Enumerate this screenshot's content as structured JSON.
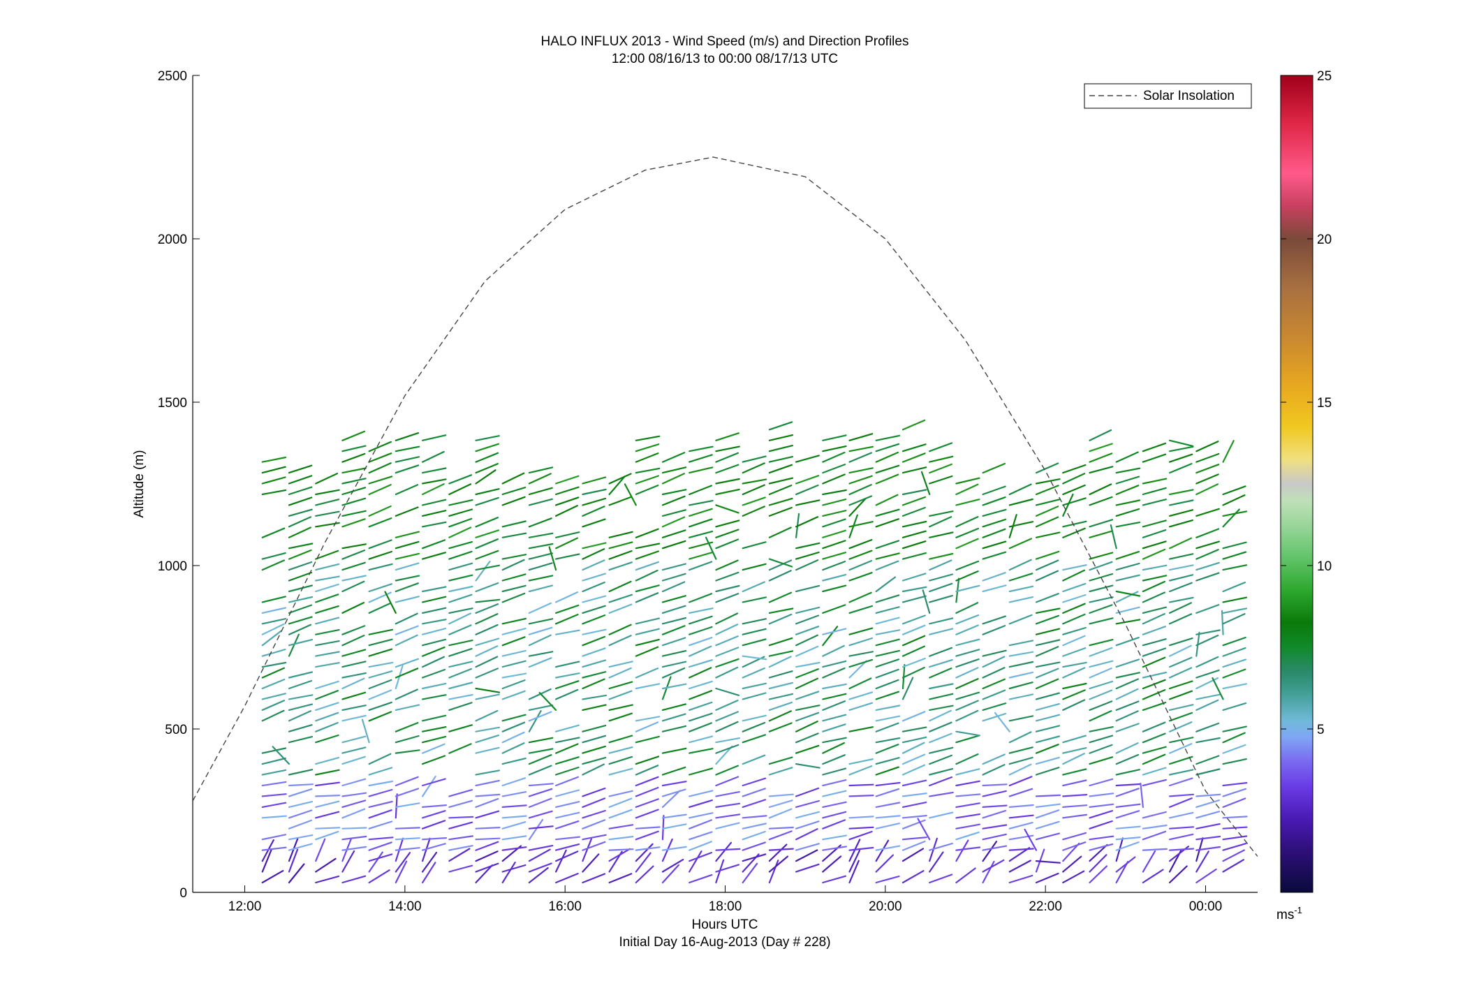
{
  "title": "HALO INFLUX 2013 - Wind Speed (m/s) and Direction Profiles",
  "subtitle": "12:00 08/16/13 to 00:00 08/17/13  UTC",
  "xlabel": "Hours UTC",
  "xlabel2": "Initial Day 16-Aug-2013 (Day # 228)",
  "ylabel": "Altitude (m)",
  "legend_label": "Solar Insolation",
  "colorbar_unit": "ms",
  "colorbar_unit_exp": "-1",
  "chart_data": {
    "type": "wind-barb",
    "x_ticks": [
      "12:00",
      "14:00",
      "16:00",
      "18:00",
      "20:00",
      "22:00",
      "00:00"
    ],
    "x_tick_hours": [
      12,
      14,
      16,
      18,
      20,
      22,
      24
    ],
    "xlim": [
      11.35,
      24.65
    ],
    "y_ticks": [
      "0",
      "500",
      "1000",
      "1500",
      "2000",
      "2500"
    ],
    "y_tick_values": [
      0,
      500,
      1000,
      1500,
      2000,
      2500
    ],
    "ylim": [
      0,
      2500
    ],
    "colorbar": {
      "ticks": [
        "5",
        "10",
        "15",
        "20",
        "25"
      ],
      "tick_values": [
        5,
        10,
        15,
        20,
        25
      ],
      "range": [
        0,
        25
      ],
      "colors": [
        "#0a0a3c",
        "#2d0f78",
        "#4a1ab4",
        "#6a3ce6",
        "#7a6af0",
        "#7fa6f5",
        "#6fbad8",
        "#3a9a8a",
        "#2a8a6a",
        "#118a2a",
        "#0a7a0a",
        "#2ea82e",
        "#62c46a",
        "#9ad69a",
        "#c0e0b8",
        "#c8c8c8",
        "#f0e080",
        "#f0c820",
        "#e8a820",
        "#c88830",
        "#a87040",
        "#7a4a3a",
        "#c84060",
        "#ff5a8a",
        "#e02848",
        "#a0001a"
      ],
      "stops": [
        0,
        0.05,
        0.09,
        0.13,
        0.16,
        0.19,
        0.21,
        0.25,
        0.27,
        0.3,
        0.33,
        0.37,
        0.41,
        0.45,
        0.48,
        0.5,
        0.53,
        0.57,
        0.62,
        0.68,
        0.74,
        0.8,
        0.84,
        0.88,
        0.94,
        1
      ]
    },
    "solar_insolation": {
      "name": "Solar Insolation",
      "style": "dashed",
      "x": [
        11.35,
        12.0,
        13.0,
        14.0,
        15.0,
        16.0,
        17.0,
        17.85,
        19.0,
        20.0,
        21.0,
        22.0,
        23.0,
        24.0,
        24.65
      ],
      "y": [
        280,
        570,
        1070,
        1520,
        1870,
        2090,
        2210,
        2250,
        2190,
        2000,
        1690,
        1290,
        820,
        310,
        110
      ]
    },
    "profiles": {
      "start_hour": 12.22,
      "step_hour": 0.3333,
      "count": 37,
      "altitude_step_m": 33,
      "max_top_m": 1380,
      "gap_altitudes_m": [
        [
          320,
          560
        ],
        [
          760,
          980
        ],
        [
          1050,
          1200
        ]
      ]
    },
    "wind_regimes": [
      {
        "altitude_m": [
          0,
          100
        ],
        "speed_ms": [
          2,
          3.5
        ],
        "direction": "westerly, veering with height"
      },
      {
        "altitude_m": [
          100,
          350
        ],
        "speed_ms": [
          3,
          5
        ],
        "direction": "westerly to southwesterly"
      },
      {
        "altitude_m": [
          350,
          1000
        ],
        "speed_ms": [
          5,
          8
        ],
        "direction": "southwesterly"
      },
      {
        "altitude_m": [
          1000,
          1450
        ],
        "speed_ms": [
          7,
          9
        ],
        "direction": "southwesterly, strongest aloft"
      }
    ]
  }
}
